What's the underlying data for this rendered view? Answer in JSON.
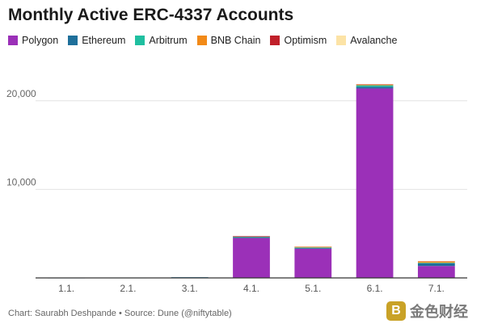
{
  "chart_data": {
    "type": "bar",
    "stacked": true,
    "title": "Monthly Active ERC-4337 Accounts",
    "categories": [
      "1.1.",
      "2.1.",
      "3.1.",
      "4.1.",
      "5.1.",
      "6.1.",
      "7.1."
    ],
    "series": [
      {
        "name": "Polygon",
        "color": "#9b30b8",
        "values": [
          0,
          0,
          20,
          4500,
          3300,
          21400,
          1350
        ]
      },
      {
        "name": "Ethereum",
        "color": "#1e6f9a",
        "values": [
          5,
          8,
          60,
          120,
          100,
          200,
          300
        ]
      },
      {
        "name": "Arbitrum",
        "color": "#1fbfa0",
        "values": [
          0,
          0,
          0,
          50,
          40,
          150,
          60
        ]
      },
      {
        "name": "BNB Chain",
        "color": "#f28a18",
        "values": [
          0,
          0,
          0,
          20,
          80,
          60,
          150
        ]
      },
      {
        "name": "Optimism",
        "color": "#c0202a",
        "values": [
          0,
          0,
          0,
          20,
          20,
          50,
          30
        ]
      },
      {
        "name": "Avalanche",
        "color": "#fce3a6",
        "values": [
          0,
          0,
          0,
          0,
          20,
          40,
          20
        ]
      }
    ],
    "yticks": [
      10000,
      20000
    ],
    "ytick_labels": [
      "10,000",
      "20,000"
    ],
    "ylim": [
      0,
      25000
    ],
    "xlabel": "",
    "ylabel": "",
    "grid": true,
    "legend_position": "top"
  },
  "footer": {
    "credit": "Chart: Saurabh Deshpande • Source: Dune (@niftytable)"
  },
  "watermark": {
    "text": "金色财经",
    "logo_glyph": "B"
  }
}
